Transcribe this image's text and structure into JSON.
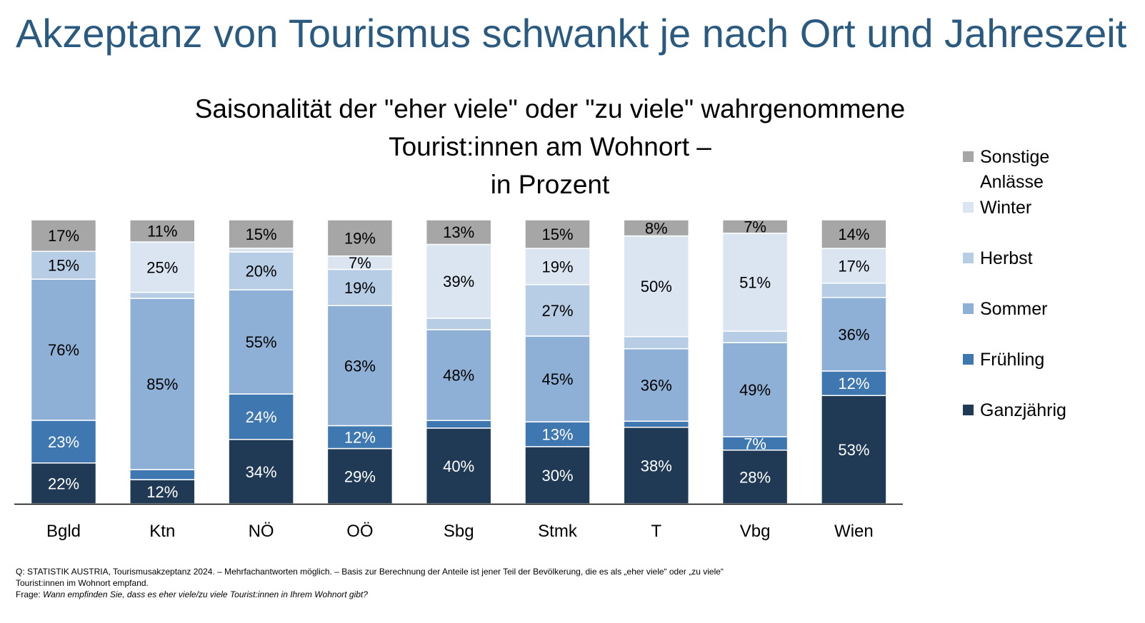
{
  "page": {
    "title": "Akzeptanz von Tourismus schwankt je nach Ort und Jahreszeit"
  },
  "chart_data": {
    "type": "bar",
    "stacked": true,
    "title_lines": [
      "Saisonalität der \"eher viele\" oder \"zu viele\" wahrgenommene",
      "Tourist:innen am Wohnort –",
      "in Prozent"
    ],
    "categories": [
      "Bgld",
      "Ktn",
      "NÖ",
      "OÖ",
      "Sbg",
      "Stmk",
      "T",
      "Vbg",
      "Wien"
    ],
    "series": [
      {
        "name": "Ganzjährig",
        "color": "#203a56",
        "label_color": "#ffffff",
        "values": [
          22,
          12,
          34,
          29,
          40,
          30,
          38,
          28,
          53
        ],
        "labels": [
          "22%",
          "12%",
          "34%",
          "29%",
          "40%",
          "30%",
          "38%",
          "28%",
          "53%"
        ]
      },
      {
        "name": "Frühling",
        "color": "#3f77b0",
        "label_color": "#ffffff",
        "values": [
          23,
          5,
          24,
          12,
          4,
          13,
          3,
          7,
          12
        ],
        "labels": [
          "23%",
          "",
          "24%",
          "12%",
          "",
          "13%",
          "",
          "7%",
          "12%"
        ]
      },
      {
        "name": "Sommer",
        "color": "#8fb0d6",
        "label_color": "#000000",
        "values": [
          76,
          85,
          55,
          63,
          48,
          45,
          36,
          49,
          36
        ],
        "labels": [
          "76%",
          "85%",
          "55%",
          "63%",
          "48%",
          "45%",
          "36%",
          "49%",
          "36%"
        ]
      },
      {
        "name": "Herbst",
        "color": "#b7cde6",
        "label_color": "#000000",
        "values": [
          15,
          3,
          20,
          19,
          6,
          27,
          6,
          6,
          7
        ],
        "labels": [
          "15%",
          "",
          "20%",
          "19%",
          "",
          "27%",
          "",
          "",
          ""
        ]
      },
      {
        "name": "Winter",
        "color": "#dae5f1",
        "label_color": "#000000",
        "values": [
          0,
          25,
          2,
          7,
          39,
          19,
          50,
          51,
          17
        ],
        "labels": [
          "",
          "25%",
          "",
          "7%",
          "39%",
          "19%",
          "50%",
          "51%",
          "17%"
        ]
      },
      {
        "name": "Sonstige Anlässe",
        "color": "#a6a6a6",
        "label_color": "#000000",
        "values": [
          17,
          11,
          15,
          19,
          13,
          15,
          8,
          7,
          14
        ],
        "labels": [
          "17%",
          "11%",
          "15%",
          "19%",
          "13%",
          "15%",
          "8%",
          "7%",
          "14%"
        ]
      }
    ],
    "xlabel": "",
    "ylabel": "",
    "grid": false,
    "legend_position": "right"
  },
  "legend": {
    "items": [
      {
        "label": "Sonstige Anlässe",
        "color": "#a6a6a6"
      },
      {
        "label": "Winter",
        "color": "#dae5f1"
      },
      {
        "label": "Herbst",
        "color": "#b7cde6"
      },
      {
        "label": "Sommer",
        "color": "#8fb0d6"
      },
      {
        "label": "Frühling",
        "color": "#3f77b0"
      },
      {
        "label": "Ganzjährig",
        "color": "#203a56"
      }
    ]
  },
  "source": {
    "line1": "Q: STATISTIK AUSTRIA, Tourismusakzeptanz 2024. – Mehrfachantworten möglich. – Basis zur Berechnung der Anteile ist jener Teil der Bevölkerung, die es als „eher viele“ oder „zu viele“",
    "line2": "Tourist:innen im Wohnort empfand.",
    "line3_prefix": "Frage: ",
    "line3_question": "Wann empfinden Sie, dass es eher viele/zu viele Tourist:innen in Ihrem Wohnort gibt?"
  }
}
